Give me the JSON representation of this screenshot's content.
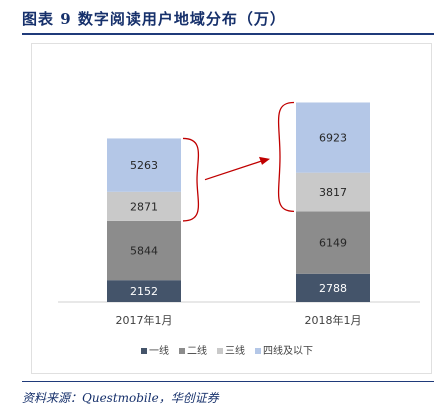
{
  "title": "图表 9   数字阅读用户地域分布（万）",
  "source": "资料来源：Questmobile，华创证券",
  "chart_data": {
    "type": "bar",
    "stacked": true,
    "categories": [
      "2017年1月",
      "2018年1月"
    ],
    "series": [
      {
        "name": "一线",
        "color": "#44546a",
        "values": [
          2152,
          2788
        ]
      },
      {
        "name": "二线",
        "color": "#8c8c8c",
        "values": [
          5844,
          6149
        ]
      },
      {
        "name": "三线",
        "color": "#c9c9c9",
        "values": [
          2871,
          3817
        ]
      },
      {
        "name": "四线及以下",
        "color": "#b4c7e7",
        "values": [
          5263,
          6923
        ]
      }
    ],
    "legend_position": "bottom",
    "grid": false,
    "annotation_color": "#c00000"
  }
}
